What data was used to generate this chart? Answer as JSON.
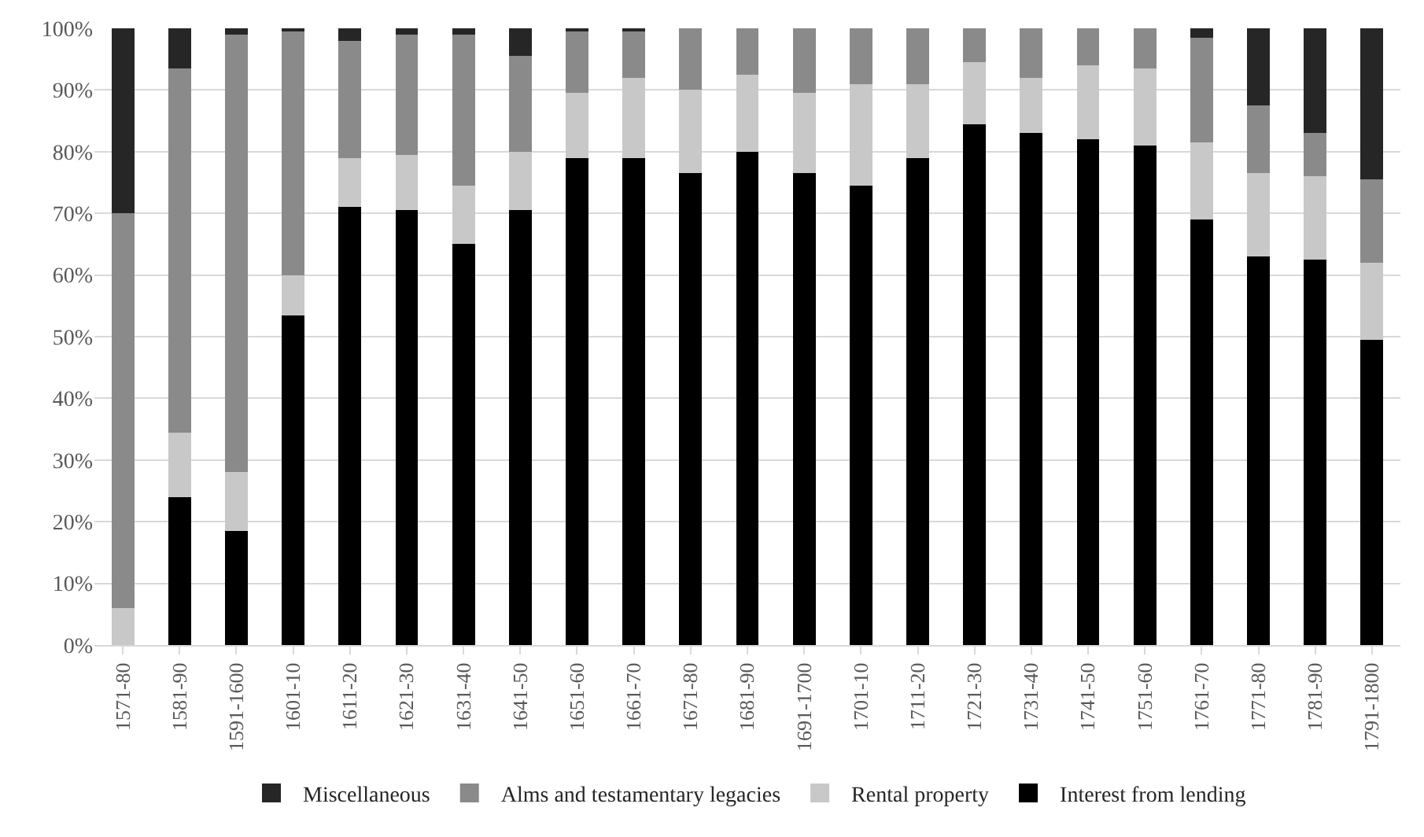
{
  "chart_data": {
    "type": "bar",
    "stacked": true,
    "categories": [
      "1571-80",
      "1581-90",
      "1591-1600",
      "1601-10",
      "1611-20",
      "1621-30",
      "1631-40",
      "1641-50",
      "1651-60",
      "1661-70",
      "1671-80",
      "1681-90",
      "1691-1700",
      "1701-10",
      "1711-20",
      "1721-30",
      "1731-40",
      "1741-50",
      "1751-60",
      "1761-70",
      "1771-80",
      "1781-90",
      "1791-1800"
    ],
    "series": [
      {
        "name": "Interest from lending",
        "color": "#000000",
        "values": [
          0,
          24,
          18.5,
          53.5,
          71,
          70.5,
          65,
          70.5,
          79,
          79,
          76.5,
          80,
          76.5,
          74.5,
          79,
          84.5,
          83,
          82,
          81,
          69,
          63,
          62.5,
          49.5
        ]
      },
      {
        "name": "Rental property",
        "color": "#c8c8c8",
        "values": [
          6,
          10.5,
          9.5,
          6.5,
          8,
          9,
          9.5,
          9.5,
          10.5,
          13,
          13.5,
          12.5,
          13,
          16.5,
          12,
          10,
          9,
          12,
          12.5,
          12.5,
          13.5,
          13.5,
          12.5
        ]
      },
      {
        "name": "Alms and testamentary legacies",
        "color": "#8a8a8a",
        "values": [
          64,
          59,
          71,
          39.5,
          19,
          19.5,
          24.5,
          15.5,
          10,
          7.5,
          10,
          7.5,
          10.5,
          9,
          9,
          5.5,
          8,
          6,
          6.5,
          17,
          11,
          7,
          13.5
        ]
      },
      {
        "name": "Miscellaneous",
        "color": "#262626",
        "values": [
          30,
          6.5,
          1,
          0.5,
          2,
          1,
          1,
          4.5,
          0.5,
          0.5,
          0,
          0,
          0,
          0,
          0,
          0,
          0,
          0,
          0,
          1.5,
          12.5,
          17,
          24.5
        ]
      }
    ],
    "ylim": [
      0,
      100
    ],
    "yticks": [
      {
        "value": 0,
        "label": "0%"
      },
      {
        "value": 10,
        "label": "10%"
      },
      {
        "value": 20,
        "label": "20%"
      },
      {
        "value": 30,
        "label": "30%"
      },
      {
        "value": 40,
        "label": "40%"
      },
      {
        "value": 50,
        "label": "50%"
      },
      {
        "value": 60,
        "label": "60%"
      },
      {
        "value": 70,
        "label": "70%"
      },
      {
        "value": 80,
        "label": "80%"
      },
      {
        "value": 90,
        "label": "90%"
      },
      {
        "value": 100,
        "label": "100%"
      }
    ],
    "grid": "y",
    "legend": "bottom"
  }
}
